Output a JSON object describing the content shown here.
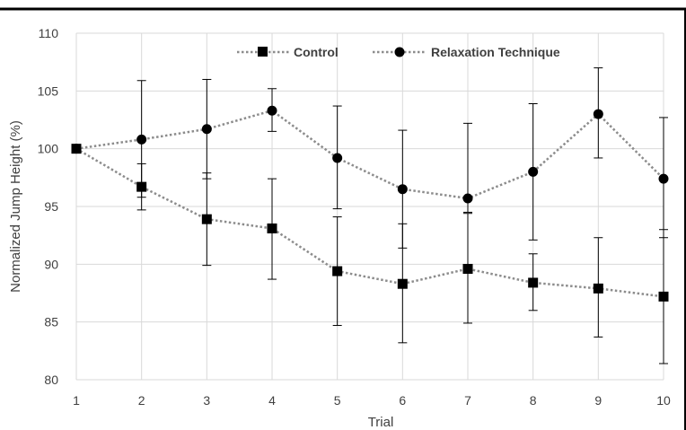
{
  "chart_data": {
    "type": "line",
    "title": "",
    "xlabel": "Trial",
    "ylabel": "Normalized Jump Height (%)",
    "x": [
      1,
      2,
      3,
      4,
      5,
      6,
      7,
      8,
      9,
      10
    ],
    "xticks": [
      "1",
      "2",
      "3",
      "4",
      "5",
      "6",
      "7",
      "8",
      "9",
      "10"
    ],
    "xlim": [
      1,
      10
    ],
    "ylim": [
      80,
      110
    ],
    "yticks": [
      "80",
      "85",
      "90",
      "95",
      "100",
      "105",
      "110"
    ],
    "grid": true,
    "legend_position": "top",
    "series": [
      {
        "name": "Control",
        "marker": "square",
        "color": "#000000",
        "line_color": "#8c8c8c",
        "line_style": "dotted",
        "values": [
          100,
          96.7,
          93.9,
          93.1,
          89.4,
          88.3,
          89.6,
          88.4,
          87.9,
          87.2
        ],
        "err_low": [
          100,
          94.7,
          89.9,
          88.7,
          84.7,
          83.2,
          84.9,
          86.0,
          83.7,
          81.4
        ],
        "err_high": [
          100,
          98.7,
          97.9,
          97.4,
          94.1,
          93.5,
          94.4,
          90.9,
          92.3,
          93.0
        ]
      },
      {
        "name": "Relaxation Technique",
        "marker": "circle",
        "color": "#000000",
        "line_color": "#8c8c8c",
        "line_style": "dotted",
        "values": [
          100,
          100.8,
          101.7,
          103.3,
          99.2,
          96.5,
          95.7,
          98.0,
          103.0,
          97.4
        ],
        "err_low": [
          100,
          95.8,
          97.4,
          101.5,
          94.8,
          91.4,
          94.5,
          92.1,
          99.2,
          92.3
        ],
        "err_high": [
          100,
          105.9,
          106.0,
          105.2,
          103.7,
          101.6,
          102.2,
          103.9,
          107.0,
          102.7
        ]
      }
    ]
  },
  "colors": {
    "grid": "#d9d9d9",
    "frame": "#000000",
    "text": "#404040"
  }
}
